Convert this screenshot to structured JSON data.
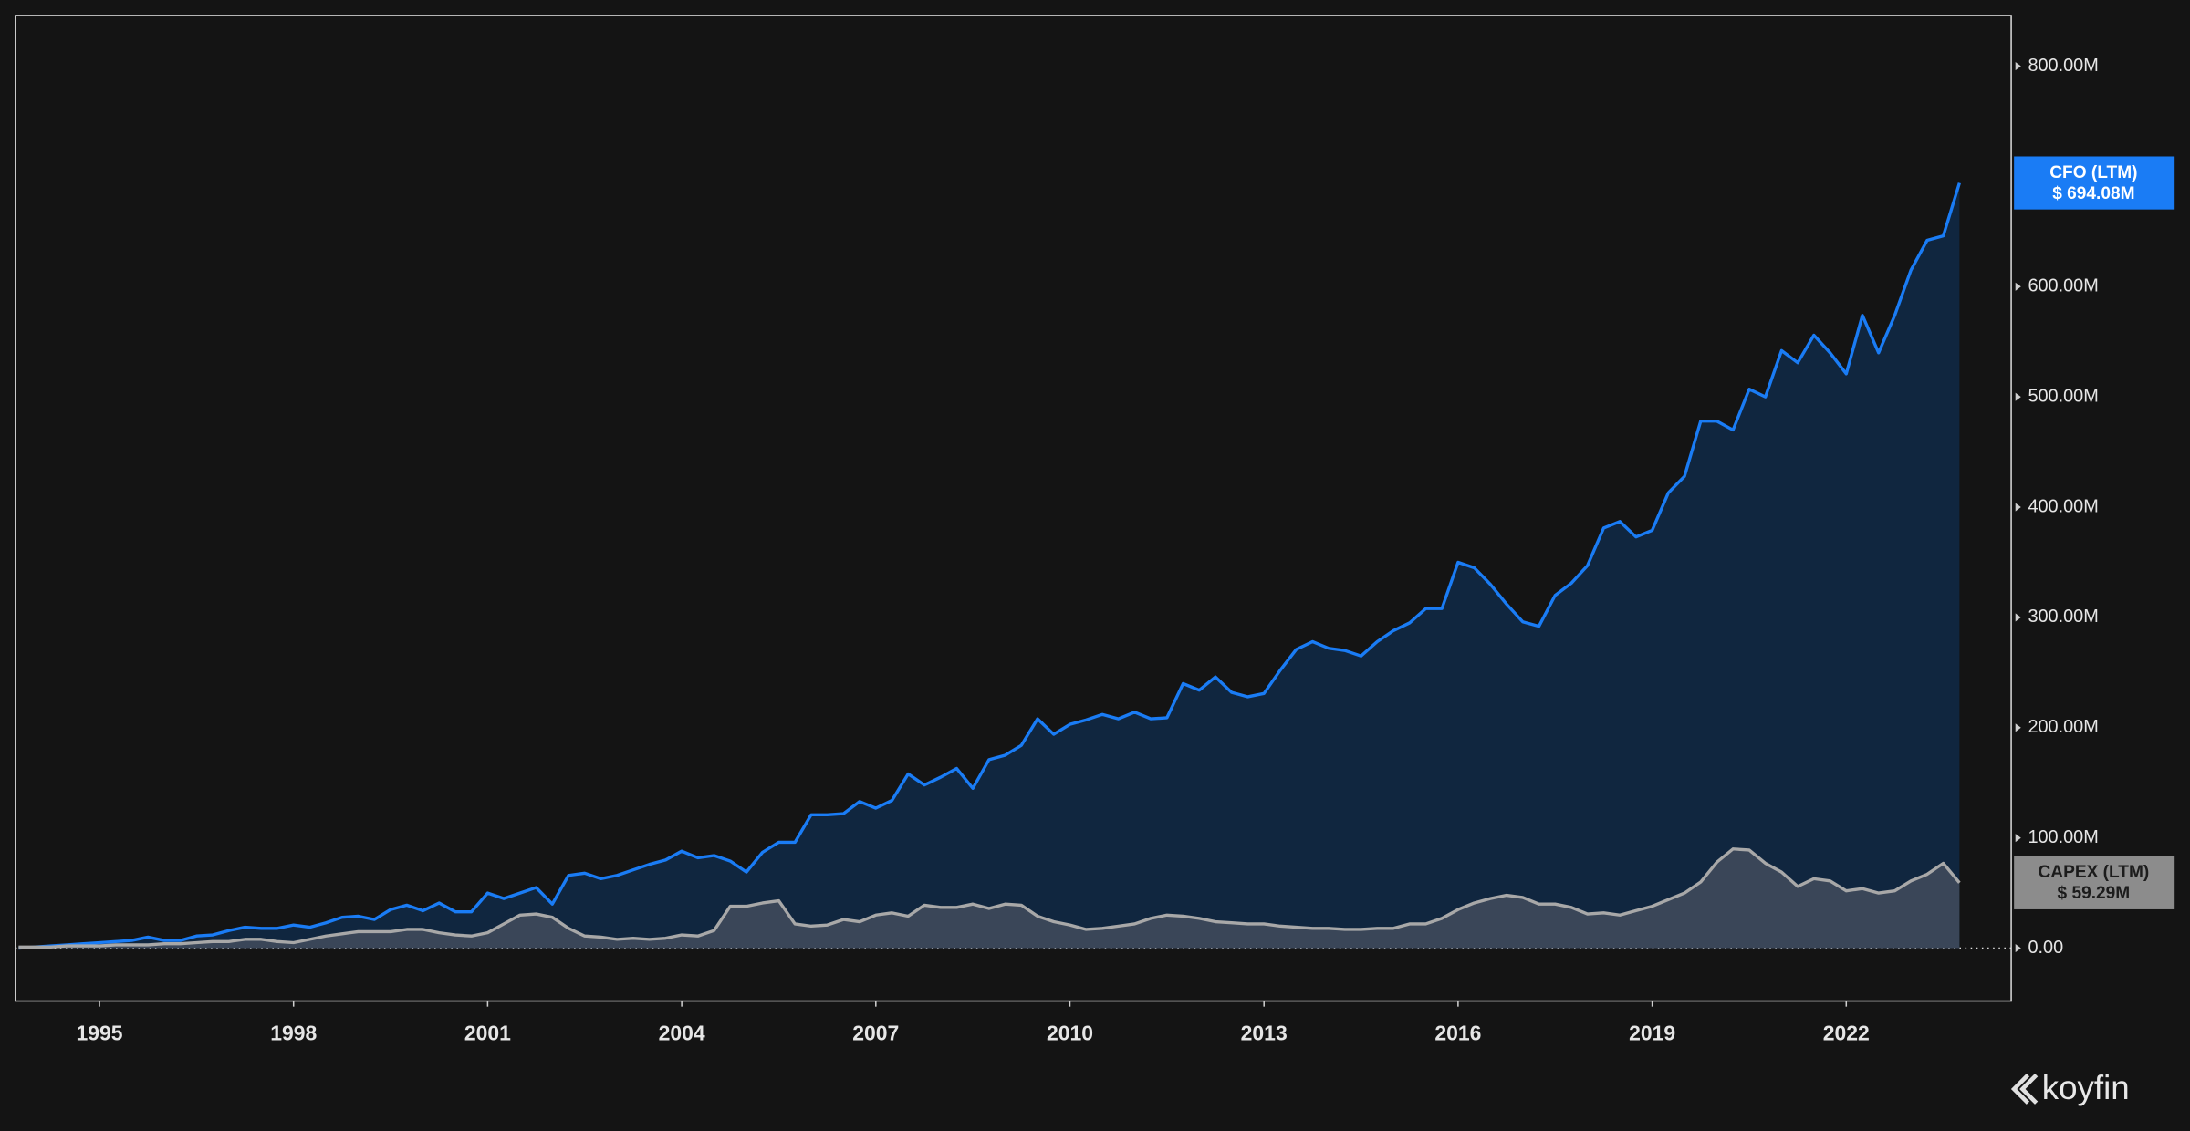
{
  "chart_data": {
    "type": "area",
    "x": [
      1993.75,
      1994,
      1994.25,
      1994.5,
      1994.75,
      1995,
      1995.25,
      1995.5,
      1995.75,
      1996,
      1996.25,
      1996.5,
      1996.75,
      1997,
      1997.25,
      1997.5,
      1997.75,
      1998,
      1998.25,
      1998.5,
      1998.75,
      1999,
      1999.25,
      1999.5,
      1999.75,
      2000,
      2000.25,
      2000.5,
      2000.75,
      2001,
      2001.25,
      2001.5,
      2001.75,
      2002,
      2002.25,
      2002.5,
      2002.75,
      2003,
      2003.25,
      2003.5,
      2003.75,
      2004,
      2004.25,
      2004.5,
      2004.75,
      2005,
      2005.25,
      2005.5,
      2005.75,
      2006,
      2006.25,
      2006.5,
      2006.75,
      2007,
      2007.25,
      2007.5,
      2007.75,
      2008,
      2008.25,
      2008.5,
      2008.75,
      2009,
      2009.25,
      2009.5,
      2009.75,
      2010,
      2010.25,
      2010.5,
      2010.75,
      2011,
      2011.25,
      2011.5,
      2011.75,
      2012,
      2012.25,
      2012.5,
      2012.75,
      2013,
      2013.25,
      2013.5,
      2013.75,
      2014,
      2014.25,
      2014.5,
      2014.75,
      2015,
      2015.25,
      2015.5,
      2015.75,
      2016,
      2016.25,
      2016.5,
      2016.75,
      2017,
      2017.25,
      2017.5,
      2017.75,
      2018,
      2018.25,
      2018.5,
      2018.75,
      2019,
      2019.25,
      2019.5,
      2019.75,
      2020,
      2020.25,
      2020.5,
      2020.75,
      2021,
      2021.25,
      2021.5,
      2021.75,
      2022,
      2022.25,
      2022.5,
      2022.75,
      2023,
      2023.25,
      2023.5,
      2023.75
    ],
    "series": [
      {
        "name": "CFO (LTM)",
        "color": "#1a7cf5",
        "fill": "#10263f",
        "end_label": "$ 694.08M",
        "values": [
          0,
          1,
          2,
          3,
          4,
          5,
          6,
          7,
          10,
          7,
          7,
          11,
          12,
          16,
          19,
          18,
          18,
          21,
          19,
          23,
          28,
          29,
          26,
          35,
          39,
          34,
          41,
          33,
          33,
          50,
          45,
          50,
          55,
          40,
          66,
          68,
          63,
          66,
          71,
          76,
          80,
          88,
          82,
          84,
          79,
          69,
          87,
          96,
          96,
          121,
          121,
          122,
          133,
          127,
          134,
          158,
          148,
          155,
          163,
          145,
          171,
          175,
          184,
          208,
          194,
          203,
          207,
          212,
          208,
          214,
          208,
          209,
          240,
          234,
          246,
          232,
          228,
          231,
          252,
          271,
          278,
          272,
          270,
          265,
          278,
          288,
          295,
          308,
          308,
          350,
          345,
          330,
          312,
          296,
          292,
          320,
          331,
          347,
          381,
          387,
          373,
          379,
          413,
          428,
          478,
          478,
          470,
          507,
          500,
          542,
          531,
          556,
          540,
          521,
          574,
          540,
          574,
          615,
          642,
          646,
          694.08
        ]
      },
      {
        "name": "CAPEX (LTM)",
        "color": "#a8a8a8",
        "fill": "#3a4658",
        "end_label": "$ 59.29M",
        "values": [
          1,
          1,
          1,
          2,
          2,
          2,
          3,
          3,
          3,
          4,
          4,
          5,
          6,
          6,
          8,
          8,
          6,
          5,
          8,
          11,
          13,
          15,
          15,
          15,
          17,
          17,
          14,
          12,
          11,
          14,
          22,
          30,
          31,
          28,
          18,
          11,
          10,
          8,
          9,
          8,
          9,
          12,
          11,
          16,
          38,
          38,
          41,
          43,
          22,
          20,
          21,
          26,
          24,
          30,
          32,
          29,
          39,
          37,
          37,
          40,
          36,
          40,
          39,
          29,
          24,
          21,
          17,
          18,
          20,
          22,
          27,
          30,
          29,
          27,
          24,
          23,
          22,
          22,
          20,
          19,
          18,
          18,
          17,
          17,
          18,
          18,
          22,
          22,
          27,
          35,
          41,
          45,
          48,
          46,
          40,
          40,
          37,
          31,
          32,
          30,
          34,
          38,
          44,
          50,
          60,
          78,
          90,
          89,
          77,
          69,
          56,
          63,
          61,
          52,
          54,
          50,
          52,
          61,
          67,
          77,
          59.29
        ]
      }
    ],
    "xlim": [
      1993.7,
      2024.55
    ],
    "xticks": [
      1995,
      1998,
      2001,
      2004,
      2007,
      2010,
      2013,
      2016,
      2019,
      2022
    ],
    "ylim": [
      -48,
      846
    ],
    "yticks": [
      {
        "value": 0,
        "label": "0.00"
      },
      {
        "value": 100,
        "label": "100.00M"
      },
      {
        "value": 200,
        "label": "200.00M"
      },
      {
        "value": 300,
        "label": "300.00M"
      },
      {
        "value": 400,
        "label": "400.00M"
      },
      {
        "value": 500,
        "label": "500.00M"
      },
      {
        "value": 600,
        "label": "600.00M"
      },
      {
        "value": 800,
        "label": "800.00M"
      }
    ],
    "logo": "koyfin"
  }
}
